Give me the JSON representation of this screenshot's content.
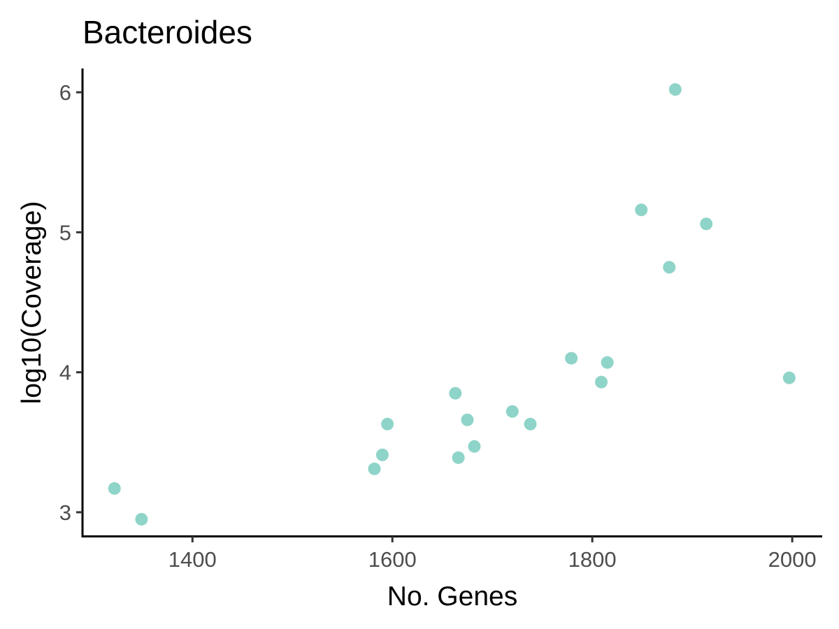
{
  "chart_data": {
    "type": "scatter",
    "title": "Bacteroides",
    "xlabel": "No. Genes",
    "ylabel": "log10(Coverage)",
    "xlim": [
      1290,
      2030
    ],
    "ylim": [
      2.83,
      6.17
    ],
    "xticks": [
      1400,
      1600,
      1800,
      2000
    ],
    "yticks": [
      3,
      4,
      5,
      6
    ],
    "grid": false,
    "point_color": "#8fd4c8",
    "points": [
      {
        "x": 1322,
        "y": 3.17
      },
      {
        "x": 1349,
        "y": 2.95
      },
      {
        "x": 1582,
        "y": 3.31
      },
      {
        "x": 1590,
        "y": 3.41
      },
      {
        "x": 1595,
        "y": 3.63
      },
      {
        "x": 1663,
        "y": 3.85
      },
      {
        "x": 1666,
        "y": 3.39
      },
      {
        "x": 1675,
        "y": 3.66
      },
      {
        "x": 1682,
        "y": 3.47
      },
      {
        "x": 1720,
        "y": 3.72
      },
      {
        "x": 1738,
        "y": 3.63
      },
      {
        "x": 1779,
        "y": 4.1
      },
      {
        "x": 1809,
        "y": 3.93
      },
      {
        "x": 1815,
        "y": 4.07
      },
      {
        "x": 1849,
        "y": 5.16
      },
      {
        "x": 1877,
        "y": 4.75
      },
      {
        "x": 1883,
        "y": 6.02
      },
      {
        "x": 1914,
        "y": 5.06
      },
      {
        "x": 1997,
        "y": 3.96
      }
    ]
  }
}
